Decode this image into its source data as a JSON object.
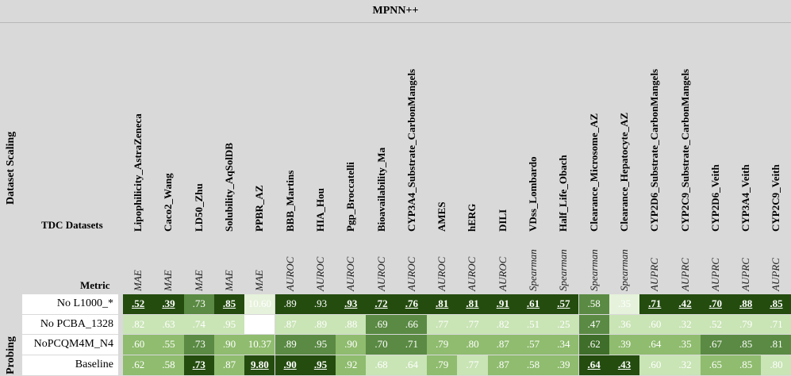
{
  "title": "MPNN++",
  "dataset_scaling_label": "Dataset Scaling",
  "probing_label": "Probing",
  "tdc_label": "TDC Datasets",
  "metric_label": "Metric",
  "datasets": [
    "Lipophilicity_AstraZeneca",
    "Caco2_Wang",
    "LD50_Zhu",
    "Solubility_AqSolDB",
    "PPBR_AZ",
    "BBB_Martins",
    "HIA_Hou",
    "Pgp_Broccatelli",
    "Bioavailability_Ma",
    "CYP3A4_Substrate_CarbonMangels",
    "AMES",
    "hERG",
    "DILI",
    "VDss_Lombardo",
    "Half_Life_Obach",
    "Clearance_Microsome_AZ",
    "Clearance_Hepatocyte_AZ",
    "CYP2D6_Substrate_CarbonMangels",
    "CYP2C9_Substrate_CarbonMangels",
    "CYP2D6_Veith",
    "CYP3A4_Veith",
    "CYP2C9_Veith"
  ],
  "metrics": [
    "MAE",
    "MAE",
    "MAE",
    "MAE",
    "MAE",
    "AUROC",
    "AUROC",
    "AUROC",
    "AUROC",
    "AUROC",
    "AUROC",
    "AUROC",
    "AUROC",
    "Spearman",
    "Spearman",
    "Spearman",
    "Spearman",
    "AUPRC",
    "AUPRC",
    "AUPRC",
    "AUPRC",
    "AUPRC"
  ],
  "rows": [
    {
      "label": "No L1000_*",
      "values": [
        ".52",
        ".39",
        ".73",
        ".85",
        "10.60",
        ".89",
        ".93",
        ".93",
        ".72",
        ".76",
        ".81",
        ".81",
        ".91",
        ".61",
        ".57",
        ".58",
        ".35",
        ".71",
        ".42",
        ".70",
        ".88",
        ".85"
      ],
      "bold": [
        true,
        true,
        false,
        true,
        false,
        false,
        false,
        true,
        true,
        true,
        true,
        true,
        true,
        true,
        true,
        false,
        false,
        true,
        true,
        true,
        true,
        true
      ],
      "colors": [
        "#244c0f",
        "#244c0f",
        "#5a8a43",
        "#244c0f",
        "#e6f2db",
        "#244c0f",
        "#244c0f",
        "#244c0f",
        "#244c0f",
        "#244c0f",
        "#244c0f",
        "#244c0f",
        "#244c0f",
        "#244c0f",
        "#244c0f",
        "#5a8a43",
        "#e6f2db",
        "#244c0f",
        "#244c0f",
        "#244c0f",
        "#244c0f",
        "#244c0f"
      ]
    },
    {
      "label": "No PCBA_1328",
      "values": [
        ".82",
        ".63",
        ".74",
        ".95",
        "9.96",
        ".87",
        ".89",
        ".88",
        ".69",
        ".66",
        ".77",
        ".77",
        ".82",
        ".51",
        ".25",
        ".47",
        ".36",
        ".60",
        ".32",
        ".52",
        ".79",
        ".71"
      ],
      "bold": [
        false,
        false,
        false,
        false,
        false,
        false,
        false,
        false,
        false,
        false,
        false,
        false,
        false,
        false,
        false,
        false,
        false,
        false,
        false,
        false,
        false,
        false
      ],
      "colors": [
        "#c9e4b5",
        "#c9e4b5",
        "#c9e4b5",
        "#c9e4b5",
        "#ffffff",
        "#c9e4b5",
        "#c9e4b5",
        "#c9e4b5",
        "#5a8a43",
        "#5a8a43",
        "#c9e4b5",
        "#c9e4b5",
        "#c9e4b5",
        "#c9e4b5",
        "#c9e4b5",
        "#5a8a43",
        "#c9e4b5",
        "#c9e4b5",
        "#c9e4b5",
        "#c9e4b5",
        "#c9e4b5",
        "#c9e4b5"
      ]
    },
    {
      "label": "NoPCQM4M_N4",
      "values": [
        ".60",
        ".55",
        ".73",
        ".90",
        "10.37",
        ".89",
        ".95",
        ".90",
        ".70",
        ".71",
        ".79",
        ".80",
        ".87",
        ".57",
        ".34",
        ".62",
        ".39",
        ".64",
        ".35",
        ".67",
        ".85",
        ".81"
      ],
      "bold": [
        false,
        false,
        false,
        false,
        false,
        false,
        false,
        false,
        false,
        false,
        false,
        false,
        false,
        false,
        false,
        false,
        false,
        false,
        false,
        false,
        false,
        false
      ],
      "colors": [
        "#8fbc6e",
        "#8fbc6e",
        "#5a8a43",
        "#8fbc6e",
        "#8fbc6e",
        "#5a8a43",
        "#5a8a43",
        "#8fbc6e",
        "#5a8a43",
        "#5a8a43",
        "#8fbc6e",
        "#8fbc6e",
        "#8fbc6e",
        "#8fbc6e",
        "#8fbc6e",
        "#3f6e2a",
        "#8fbc6e",
        "#8fbc6e",
        "#8fbc6e",
        "#5a8a43",
        "#5a8a43",
        "#5a8a43"
      ]
    },
    {
      "label": "Baseline",
      "values": [
        ".62",
        ".58",
        ".73",
        ".87",
        "9.80",
        ".90",
        ".95",
        ".92",
        ".68",
        ".64",
        ".79",
        ".77",
        ".87",
        ".58",
        ".39",
        ".64",
        ".43",
        ".60",
        ".32",
        ".65",
        ".85",
        ".80"
      ],
      "bold": [
        false,
        false,
        true,
        false,
        true,
        true,
        true,
        false,
        false,
        false,
        false,
        false,
        false,
        false,
        false,
        true,
        true,
        false,
        false,
        false,
        false,
        false
      ],
      "colors": [
        "#8fbc6e",
        "#8fbc6e",
        "#244c0f",
        "#8fbc6e",
        "#244c0f",
        "#244c0f",
        "#244c0f",
        "#8fbc6e",
        "#c9e4b5",
        "#c9e4b5",
        "#8fbc6e",
        "#c9e4b5",
        "#8fbc6e",
        "#8fbc6e",
        "#8fbc6e",
        "#244c0f",
        "#244c0f",
        "#c9e4b5",
        "#c9e4b5",
        "#8fbc6e",
        "#8fbc6e",
        "#c9e4b5"
      ]
    }
  ]
}
